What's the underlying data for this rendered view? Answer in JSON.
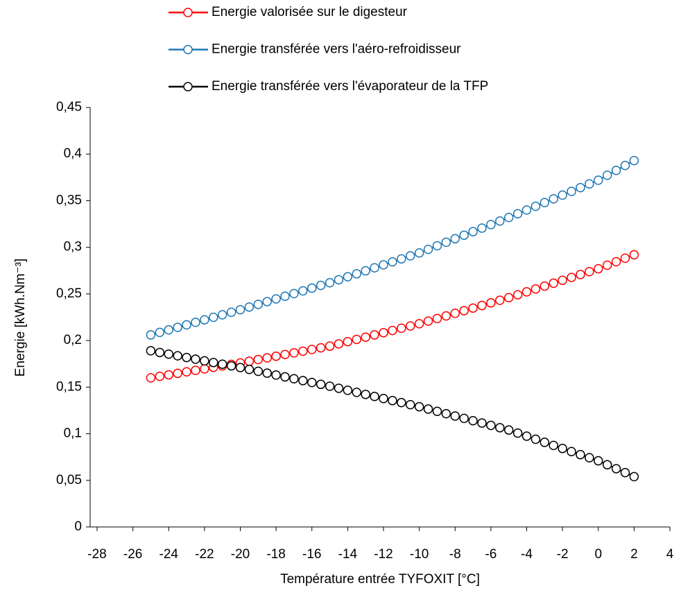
{
  "chart_data": {
    "type": "line",
    "xlabel": "Température entrée TYFOXIT [°C]",
    "ylabel": "Energie  [kWh.Nm⁻³]",
    "x": [
      -25,
      -24.5,
      -24,
      -23.5,
      -23,
      -22.5,
      -22,
      -21.5,
      -21,
      -20.5,
      -20,
      -19.5,
      -19,
      -18.5,
      -18,
      -17.5,
      -17,
      -16.5,
      -16,
      -15.5,
      -15,
      -14.5,
      -14,
      -13.5,
      -13,
      -12.5,
      -12,
      -11.5,
      -11,
      -10.5,
      -10,
      -9.5,
      -9,
      -8.5,
      -8,
      -7.5,
      -7,
      -6.5,
      -6,
      -5.5,
      -5,
      -4.5,
      -4,
      -3.5,
      -3,
      -2.5,
      -2,
      -1.5,
      -1,
      -0.5,
      0,
      0.5,
      1,
      1.5,
      2
    ],
    "series": [
      {
        "name": "Energie valorisée sur le digesteur",
        "color": "#ff0000",
        "values": [
          0.16,
          0.1616,
          0.1632,
          0.1648,
          0.1664,
          0.168,
          0.1696,
          0.1712,
          0.1728,
          0.1744,
          0.176,
          0.1778,
          0.1796,
          0.1814,
          0.1832,
          0.185,
          0.1868,
          0.1886,
          0.1904,
          0.1922,
          0.194,
          0.1964,
          0.1988,
          0.2012,
          0.2036,
          0.206,
          0.2084,
          0.2108,
          0.2132,
          0.2156,
          0.218,
          0.2208,
          0.2236,
          0.2264,
          0.2292,
          0.232,
          0.2348,
          0.2376,
          0.2404,
          0.2432,
          0.246,
          0.2491,
          0.2522,
          0.2553,
          0.2584,
          0.2615,
          0.2646,
          0.2677,
          0.2708,
          0.2739,
          0.277,
          0.2808,
          0.2845,
          0.2883,
          0.292
        ]
      },
      {
        "name": "Energie transférée vers l'aéro-refroidisseur",
        "color": "#1f77b4",
        "values": [
          0.206,
          0.2087,
          0.2114,
          0.2141,
          0.2168,
          0.2195,
          0.2222,
          0.2249,
          0.2276,
          0.2303,
          0.233,
          0.2359,
          0.2388,
          0.2417,
          0.2446,
          0.2475,
          0.2504,
          0.2533,
          0.2562,
          0.2591,
          0.262,
          0.2652,
          0.2684,
          0.2716,
          0.2748,
          0.278,
          0.2812,
          0.2844,
          0.2876,
          0.2908,
          0.294,
          0.2978,
          0.3016,
          0.3054,
          0.3092,
          0.313,
          0.3168,
          0.3206,
          0.3244,
          0.3282,
          0.332,
          0.336,
          0.34,
          0.344,
          0.348,
          0.352,
          0.356,
          0.36,
          0.364,
          0.368,
          0.372,
          0.3773,
          0.3825,
          0.3878,
          0.393
        ]
      },
      {
        "name": "Energie transférée vers l'évaporateur de la TFP",
        "color": "#000000",
        "values": [
          0.189,
          0.1872,
          0.1854,
          0.1836,
          0.1818,
          0.18,
          0.1782,
          0.1764,
          0.1746,
          0.1728,
          0.171,
          0.169,
          0.167,
          0.165,
          0.163,
          0.161,
          0.159,
          0.157,
          0.155,
          0.153,
          0.151,
          0.1488,
          0.1466,
          0.1444,
          0.1422,
          0.14,
          0.1378,
          0.1356,
          0.1334,
          0.1312,
          0.129,
          0.1265,
          0.124,
          0.1215,
          0.119,
          0.1165,
          0.114,
          0.1115,
          0.109,
          0.1065,
          0.104,
          0.1007,
          0.0974,
          0.0941,
          0.0908,
          0.0875,
          0.0842,
          0.0809,
          0.0776,
          0.0743,
          0.071,
          0.0668,
          0.0625,
          0.0583,
          0.054
        ]
      }
    ],
    "xlim": [
      -28,
      4
    ],
    "xticks": [
      -28,
      -26,
      -24,
      -22,
      -20,
      -18,
      -16,
      -14,
      -12,
      -10,
      -8,
      -6,
      -4,
      -2,
      0,
      2,
      4
    ],
    "ylim": [
      0,
      0.45
    ],
    "yticks": [
      {
        "value": 0,
        "label": "0"
      },
      {
        "value": 0.05,
        "label": "0,05"
      },
      {
        "value": 0.1,
        "label": "0,1"
      },
      {
        "value": 0.15,
        "label": "0,15"
      },
      {
        "value": 0.2,
        "label": "0,2"
      },
      {
        "value": 0.25,
        "label": "0,25"
      },
      {
        "value": 0.3,
        "label": "0,3"
      },
      {
        "value": 0.35,
        "label": "0,35"
      },
      {
        "value": 0.4,
        "label": "0,4"
      },
      {
        "value": 0.45,
        "label": "0,45"
      }
    ],
    "grid": false,
    "legend": "top"
  }
}
